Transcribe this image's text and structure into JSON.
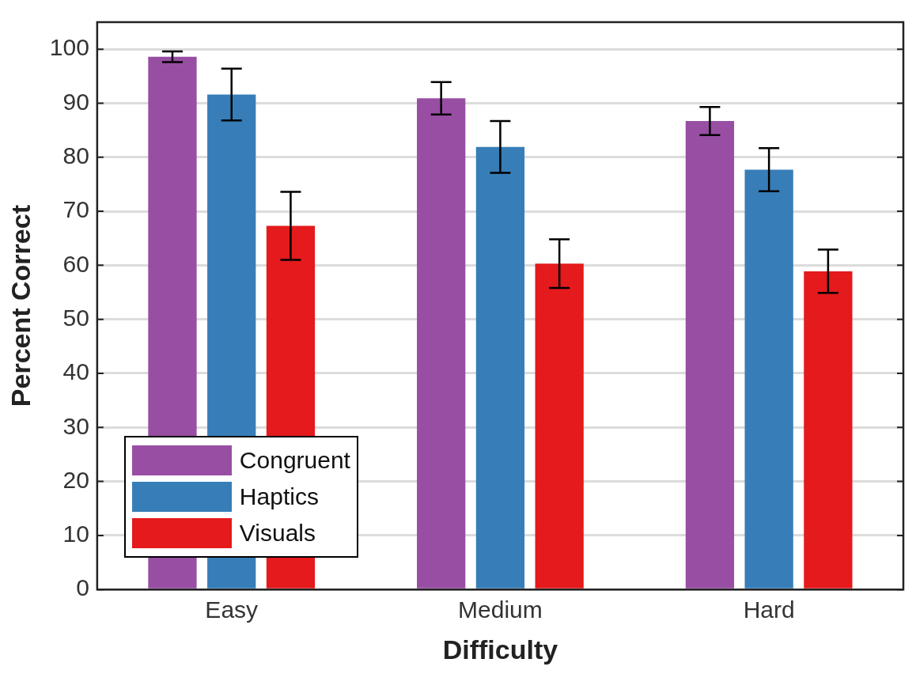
{
  "chart_data": {
    "type": "bar",
    "xlabel": "Difficulty",
    "ylabel": "Percent Correct",
    "categories": [
      "Easy",
      "Medium",
      "Hard"
    ],
    "series": [
      {
        "name": "Congruent",
        "color": "#984ea3",
        "values": [
          98.6,
          90.9,
          86.7
        ],
        "errors": [
          1.0,
          3.0,
          2.6
        ]
      },
      {
        "name": "Haptics",
        "color": "#377eb8",
        "values": [
          91.6,
          81.9,
          77.7
        ],
        "errors": [
          4.8,
          4.8,
          4.0
        ]
      },
      {
        "name": "Visuals",
        "color": "#e41a1c",
        "values": [
          67.3,
          60.3,
          58.9
        ],
        "errors": [
          6.3,
          4.5,
          4.0
        ]
      }
    ],
    "ylim": [
      0,
      105
    ],
    "yticks": [
      0,
      10,
      20,
      30,
      40,
      50,
      60,
      70,
      80,
      90,
      100
    ],
    "grid": "y",
    "legend": "bottom left"
  }
}
